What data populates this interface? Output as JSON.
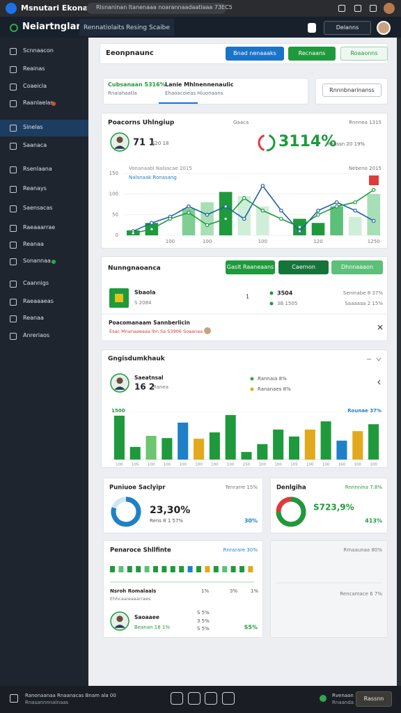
{
  "browser": {
    "title": "Msnutari Ekonana",
    "url": "Rlsnaninan ltanenaaa noarannaadaatlaaa 73EC5"
  },
  "header": {
    "brand": "Neiartnglania",
    "nav": [
      "Rennatiolaits",
      "Resing",
      "Scaibe"
    ],
    "button": "Delanns"
  },
  "sidebar": {
    "active": 4,
    "items": [
      {
        "label": "Scnnaacon"
      },
      {
        "label": "Reainas"
      },
      {
        "label": "Coaeicla"
      },
      {
        "label": "Raanlaelas",
        "badge": "#e04a3a"
      },
      {
        "label": "Sinelas"
      },
      {
        "label": "Saanaca"
      },
      {
        "label": "Rsenlaana"
      },
      {
        "label": "Reanays"
      },
      {
        "label": "Saensacas"
      },
      {
        "label": "Raeaaarrae"
      },
      {
        "label": "Reanaa"
      },
      {
        "label": "Sonannaa",
        "badge": "#2fa84f"
      },
      {
        "label": "Caannigs"
      },
      {
        "label": "Raeaaaeas"
      },
      {
        "label": "Reanaa"
      },
      {
        "label": "Anreriaos"
      }
    ]
  },
  "toolbar": {
    "title": "Eeonpnaunc",
    "buttons": [
      "Bnad nenaaaks",
      "Recnaans",
      "Roaaonns"
    ]
  },
  "tabs": {
    "items": [
      {
        "title": "Cubsanaan 5316%",
        "sub": "Rnaiahaatla"
      },
      {
        "title": "Lanie Mhlnennenaulic",
        "sub": "Ehaoacoieas Hiuonaans"
      }
    ],
    "active": 1,
    "action": "Rnnnbnarinanss"
  },
  "performance": {
    "title": "Poacorns Uhlngiup",
    "tag": "Gaaca",
    "range": "Rnnnea 1315",
    "metric": "71 1",
    "metric_sub": "E20 18",
    "big": "3114%",
    "big_sub": "Ranssn 20 19%"
  },
  "network": {
    "title": "Nunngnaoanca",
    "buttons": [
      "Gaslt Raaneaans",
      "Caernon",
      "Dhnnaaaon"
    ],
    "name": "Sbaola",
    "sub": "S 2084",
    "count": "1",
    "stat1": "3504",
    "stat2": "3B 1505",
    "right1": "Seninabe 8 37%",
    "right2": "Saaaaaa 2 15%",
    "alert_title": "Poacomanaam Sannberlicin",
    "alert_text": "Esac Mnanaaeaaa lbn Sa S3906 Soaanaa"
  },
  "growth": {
    "title": "Gngisdumkhauk",
    "name": "Saeatnsal",
    "metric": "16 2",
    "metric_sub": "Ranea",
    "legend": [
      {
        "label": "Rannaia 8%",
        "color": "#2fa84f"
      },
      {
        "label": "Rananaes 8%",
        "color": "#e3a91c"
      }
    ]
  },
  "summary": [
    {
      "title": "Puniuoe Saclyipr",
      "tag": "Tenrarre 15%",
      "value": "23,30%",
      "sub": "Rens 8 1 57%",
      "side": "30%",
      "percent": 80,
      "color": "#1f80c8",
      "rest": "#cfe6f5"
    },
    {
      "title": "Denlgiha",
      "tag": "Rnnnnina 7.8%",
      "value": "S723,9%",
      "side": "413%",
      "percent": 75,
      "color": "#1e9a3c",
      "rest": "#e03a3a"
    }
  ],
  "list": {
    "title": "Penaroce Shllfinte",
    "tag": "Rnnsrare 30%",
    "squares": [
      "#1e9a3c",
      "#5cc07a",
      "#1e9a3c",
      "#1e9a3c",
      "#5cc07a",
      "#1e9a3c",
      "#1e9a3c",
      "#1e9a3c",
      "#1e9a3c",
      "#1f80c8",
      "#1e9a3c",
      "#e3a91c",
      "#1e9a3c",
      "#5cc07a",
      "#1e9a3c",
      "#1e9a3c",
      "#e3a91c"
    ],
    "row_title": "Nsroh Romalaals",
    "row_sub": "Ehhcaaieaaarraes",
    "row_vals": [
      "1%",
      "3%",
      "1%"
    ],
    "name": "Saoaaee",
    "name_sub": "Beanan 18 1%",
    "mid": [
      "S 5%",
      "3 5%",
      "S 5%"
    ],
    "side": "S5%"
  },
  "side_panel": {
    "top": "Rmaaunaa 80%",
    "bottom": "Rencamace 6 7%"
  },
  "footer": {
    "line1": "Ranonaanaa Rnaanacas Bnam ala 00",
    "line2": "Rnasannnnalnaas",
    "status1": "Rvenaan",
    "status2": "Rnaanda",
    "button": "Rassnn"
  },
  "chart_data": [
    {
      "type": "bar-line",
      "categories": [
        null,
        null,
        "100",
        null,
        "100",
        null,
        null,
        "100",
        null,
        null,
        "120",
        null,
        null,
        "1250"
      ],
      "values": [
        12,
        30,
        0,
        65,
        80,
        105,
        95,
        70,
        0,
        40,
        30,
        70,
        45,
        100
      ],
      "colors": [
        "#1e9a3c",
        "#1e9a3c",
        "#1e9a3c",
        "#7fcf94",
        "#a8dfb6",
        "#1e9a3c",
        "#cfeeda",
        "#cfeeda",
        "#1e9a3c",
        "#1e9a3c",
        "#1e9a3c",
        "#5cc07a",
        "#cfeeda",
        "#a8dfb6"
      ],
      "series": [
        {
          "name": "Vonanaabl Nalsacae 2015",
          "color": "#1f5fa8",
          "values": [
            10,
            30,
            45,
            70,
            50,
            70,
            40,
            120,
            60,
            10,
            60,
            80,
            60,
            35
          ]
        },
        {
          "name": "Nalsnaak Ronasang",
          "color": "#1e9a3c",
          "values": [
            5,
            15,
            40,
            55,
            25,
            40,
            90,
            60,
            40,
            20,
            50,
            70,
            80,
            110
          ]
        }
      ],
      "annotation": "Nebeno 2015",
      "ylim": [
        0,
        160
      ],
      "yticks": [
        0,
        50,
        100,
        150
      ]
    },
    {
      "type": "bar",
      "categories": [
        "100",
        "105",
        "100",
        "100",
        "100",
        "100",
        "100",
        "100",
        "150",
        "100",
        "100",
        "105",
        "100",
        "100",
        "160",
        "100",
        "100"
      ],
      "values": [
        1390,
        400,
        750,
        680,
        1170,
        660,
        860,
        1410,
        240,
        490,
        950,
        730,
        950,
        1210,
        600,
        900,
        1120
      ],
      "colors": [
        "#1e9a3c",
        "#1e9a3c",
        "#6cc56f",
        "#1e9a3c",
        "#1f80c8",
        "#e3a91c",
        "#1e9a3c",
        "#1e9a3c",
        "#1e9a3c",
        "#1e9a3c",
        "#1e9a3c",
        "#1e9a3c",
        "#e3a91c",
        "#1e9a3c",
        "#1f80c8",
        "#e3a91c",
        "#1e9a3c"
      ],
      "ylim": [
        0,
        1500
      ],
      "yticks": [
        1500
      ],
      "annotation": "Rounae 37%"
    }
  ]
}
